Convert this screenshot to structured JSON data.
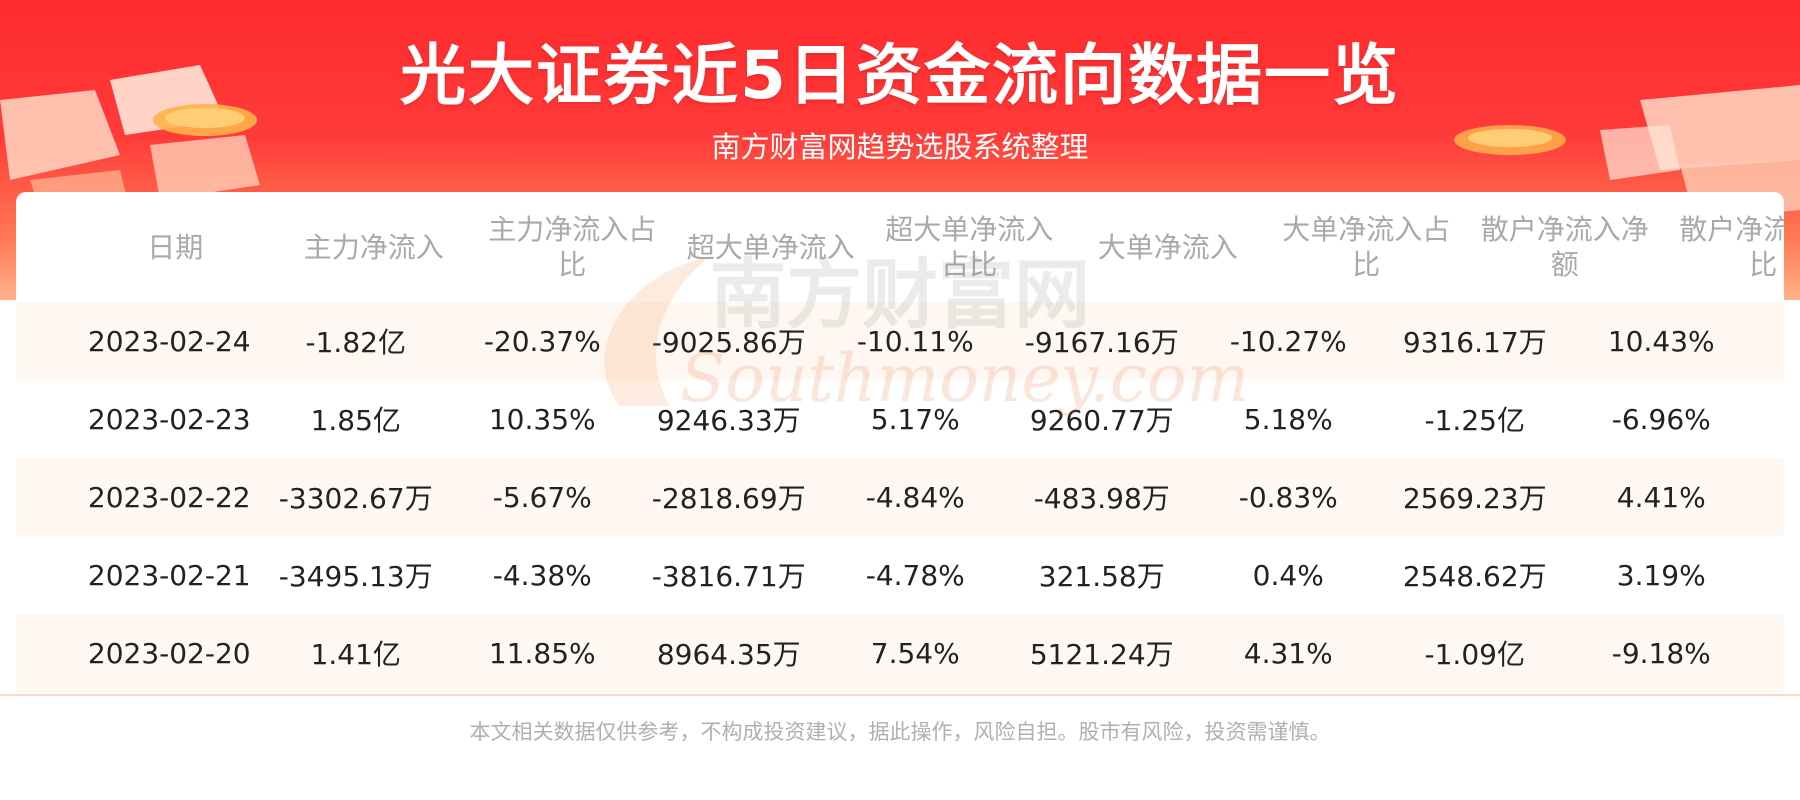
{
  "header": {
    "title": "光大证券近5日资金流向数据一览",
    "subtitle": "南方财富网趋势选股系统整理"
  },
  "watermark": {
    "cn": "南方财富网",
    "en": "Southmoney.com"
  },
  "table": {
    "columns": [
      "日期",
      "主力净流入",
      "主力净流入占比",
      "超大单净流入",
      "超大单净流入占比",
      "大单净流入",
      "大单净流入占比",
      "散户净流入净额",
      "散户净流入占比"
    ],
    "rows": [
      [
        "2023-02-24",
        "-1.82亿",
        "-20.37%",
        "-9025.86万",
        "-10.11%",
        "-9167.16万",
        "-10.27%",
        "9316.17万",
        "10.43%"
      ],
      [
        "2023-02-23",
        "1.85亿",
        "10.35%",
        "9246.33万",
        "5.17%",
        "9260.77万",
        "5.18%",
        "-1.25亿",
        "-6.96%"
      ],
      [
        "2023-02-22",
        "-3302.67万",
        "-5.67%",
        "-2818.69万",
        "-4.84%",
        "-483.98万",
        "-0.83%",
        "2569.23万",
        "4.41%"
      ],
      [
        "2023-02-21",
        "-3495.13万",
        "-4.38%",
        "-3816.71万",
        "-4.78%",
        "321.58万",
        "0.4%",
        "2548.62万",
        "3.19%"
      ],
      [
        "2023-02-20",
        "1.41亿",
        "11.85%",
        "8964.35万",
        "7.54%",
        "5121.24万",
        "4.31%",
        "-1.09亿",
        "-9.18%"
      ]
    ]
  },
  "footer": {
    "disclaimer": "本文相关数据仅供参考，不构成投资建议，据此操作，风险自担。股市有风险，投资需谨慎。"
  },
  "colors": {
    "banner_red": "#ff2a2e",
    "row_stripe": "#fff7f1",
    "header_text": "#a9a9a9"
  }
}
